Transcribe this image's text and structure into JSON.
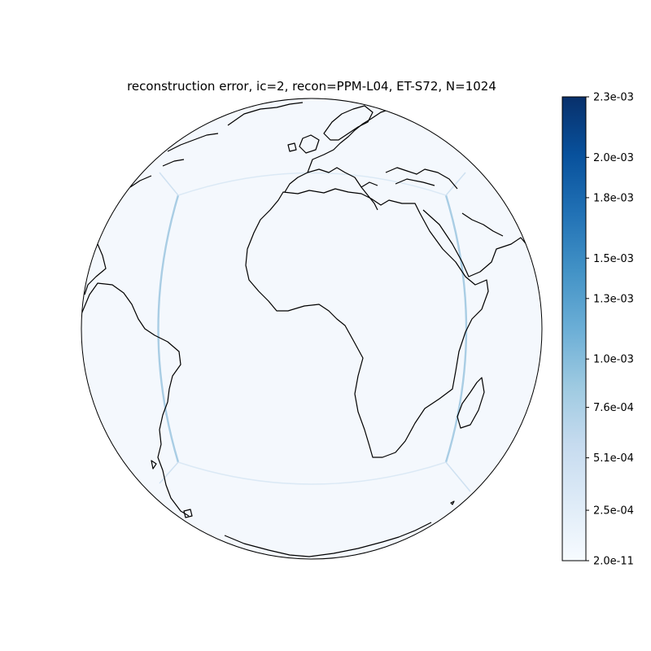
{
  "title": "reconstruction error, ic=2, recon=PPM-L04, ET-S72, N=1024",
  "colorbar": {
    "colormap": "Blues",
    "color_low": "#f7fbff",
    "color_high": "#08306b",
    "tick_labels": [
      "2.3e-03",
      "2.0e-03",
      "1.8e-03",
      "1.5e-03",
      "1.3e-03",
      "1.0e-03",
      "7.6e-04",
      "5.1e-04",
      "2.5e-04",
      "2.0e-11"
    ],
    "tick_values": [
      0.0023,
      0.002,
      0.0018,
      0.0015,
      0.0013,
      0.001,
      0.00076,
      0.00051,
      0.00025,
      2e-11
    ],
    "range": [
      2e-11,
      0.0023
    ]
  },
  "map": {
    "projection": "orthographic",
    "center_lon": 0,
    "center_lat": 0,
    "background_value_color": "#f4f8fd",
    "error_band_color": "#a9cde4",
    "features": [
      "coastlines",
      "cubed-sphere panel edges"
    ]
  }
}
